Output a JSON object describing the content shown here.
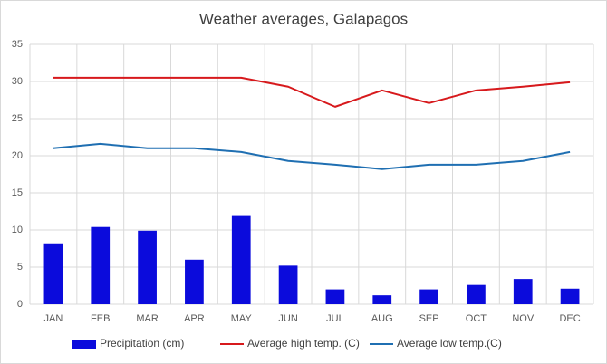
{
  "chart_data": {
    "type": "combo",
    "title": "Weather averages, Galapagos",
    "categories": [
      "JAN",
      "FEB",
      "MAR",
      "APR",
      "MAY",
      "JUN",
      "JUL",
      "AUG",
      "SEP",
      "OCT",
      "NOV",
      "DEC"
    ],
    "series": [
      {
        "name": "Precipitation (cm)",
        "type": "bar",
        "color": "#0b0bdc",
        "values": [
          8.2,
          10.4,
          9.9,
          6.0,
          12.0,
          5.2,
          2.0,
          1.2,
          2.0,
          2.6,
          3.4,
          2.1
        ]
      },
      {
        "name": "Average high temp. (C)",
        "type": "line",
        "color": "#d7191c",
        "values": [
          30.5,
          30.5,
          30.5,
          30.5,
          30.5,
          29.3,
          26.6,
          28.8,
          27.1,
          28.8,
          29.3,
          29.9
        ]
      },
      {
        "name": "Average low temp.(C)",
        "type": "line",
        "color": "#1f6fb2",
        "values": [
          21.0,
          21.6,
          21.0,
          21.0,
          20.5,
          19.3,
          18.8,
          18.2,
          18.8,
          18.8,
          19.3,
          20.5
        ]
      }
    ],
    "ylim": [
      0,
      35
    ],
    "yticks": [
      0,
      5,
      10,
      15,
      20,
      25,
      30,
      35
    ],
    "grid": true,
    "legend": "bottom"
  }
}
